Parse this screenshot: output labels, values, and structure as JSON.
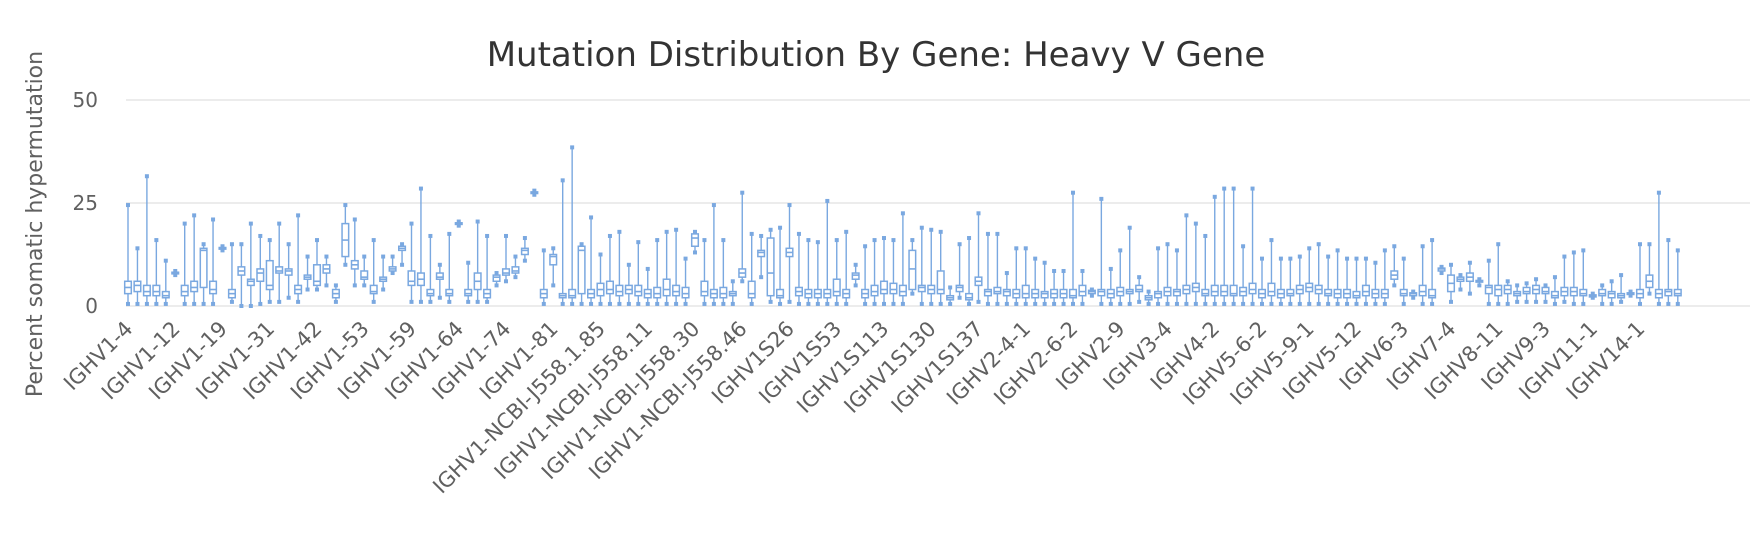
{
  "chart_data": {
    "type": "boxplot",
    "title": "Mutation Distribution By Gene: Heavy V Gene",
    "xlabel": "",
    "ylabel": "Percent somatic hypermutation",
    "ylim": [
      0,
      50
    ],
    "yticks": [
      0,
      25,
      50
    ],
    "grid": true,
    "legend": "none",
    "color": "#7aa8e0",
    "tick_labels": [
      "IGHV1-4",
      "IGHV1-12",
      "IGHV1-19",
      "IGHV1-31",
      "IGHV1-42",
      "IGHV1-53",
      "IGHV1-59",
      "IGHV1-64",
      "IGHV1-74",
      "IGHV1-81",
      "IGHV1-NCBI-J558.1.85",
      "IGHV1-NCBI-J558.11",
      "IGHV1-NCBI-J558.30",
      "IGHV1-NCBI-J558.46",
      "IGHV1S26",
      "IGHV1S53",
      "IGHV1S113",
      "IGHV1S130",
      "IGHV1S137",
      "IGHV2-4-1",
      "IGHV2-6-2",
      "IGHV2-9",
      "IGHV3-4",
      "IGHV4-2",
      "IGHV5-6-2",
      "IGHV5-9-1",
      "IGHV5-12",
      "IGHV6-3",
      "IGHV7-4",
      "IGHV8-11",
      "IGHV9-3",
      "IGHV11-1",
      "IGHV14-1"
    ],
    "tick_every": 5,
    "boxes": [
      [
        0.5,
        3,
        4.5,
        6,
        24.5
      ],
      [
        0.5,
        3.5,
        5,
        6,
        14
      ],
      [
        0.5,
        2.5,
        3.5,
        5,
        31.5
      ],
      [
        0.5,
        2.5,
        3.5,
        5,
        16
      ],
      [
        0.5,
        2,
        2.5,
        3.5,
        11
      ],
      [
        7.5,
        7.8,
        8,
        8.2,
        8.5
      ],
      [
        0.5,
        2.5,
        3.5,
        5,
        20
      ],
      [
        0.5,
        3.5,
        4.5,
        6,
        22
      ],
      [
        0.5,
        4.5,
        13.5,
        14,
        15
      ],
      [
        0.5,
        3,
        4,
        6,
        21
      ],
      [
        13.5,
        13.8,
        14,
        14.2,
        14.5
      ],
      [
        1,
        2,
        3,
        4,
        15
      ],
      [
        0,
        7.5,
        8.5,
        9.5,
        15
      ],
      [
        0,
        5,
        6,
        6.5,
        20
      ],
      [
        0.5,
        6,
        8,
        9,
        17
      ],
      [
        1,
        4,
        5,
        11,
        16
      ],
      [
        1,
        8,
        8.5,
        9.5,
        20
      ],
      [
        2,
        7.5,
        8.5,
        9,
        15
      ],
      [
        1,
        3,
        4,
        5,
        22
      ],
      [
        4,
        6.5,
        7,
        7.5,
        12
      ],
      [
        4,
        5,
        6,
        10,
        16
      ],
      [
        5,
        8,
        9,
        10,
        12
      ],
      [
        1,
        2,
        3,
        4,
        5
      ],
      [
        10,
        12,
        16,
        20,
        24.5
      ],
      [
        5,
        9,
        10,
        11,
        21
      ],
      [
        5,
        6.5,
        7,
        8.5,
        12
      ],
      [
        1,
        3,
        3.5,
        5,
        16
      ],
      [
        4,
        6,
        6.5,
        7,
        12
      ],
      [
        8,
        8.5,
        9,
        9.5,
        12
      ],
      [
        10,
        13.5,
        14,
        14.5,
        15
      ],
      [
        1,
        5,
        6,
        8.5,
        20
      ],
      [
        1,
        5,
        6.5,
        8,
        28.5
      ],
      [
        1,
        2.5,
        3,
        4,
        17
      ],
      [
        2,
        6.5,
        7,
        8,
        10
      ],
      [
        1,
        2.5,
        3,
        4,
        17.5
      ],
      [
        19.5,
        19.8,
        20,
        20.2,
        20.5
      ],
      [
        1,
        2.5,
        3,
        4,
        10.5
      ],
      [
        1,
        4,
        6,
        8,
        20.5
      ],
      [
        1,
        2,
        3,
        4,
        17
      ],
      [
        5,
        6,
        7,
        7.5,
        8
      ],
      [
        6,
        7.5,
        8,
        9,
        17
      ],
      [
        7,
        8,
        8.5,
        9.5,
        12
      ],
      [
        11,
        12.5,
        13.5,
        14,
        16.5
      ],
      [
        27,
        27.3,
        27.5,
        27.7,
        28
      ],
      [
        0.5,
        2,
        3,
        4,
        13.5
      ],
      [
        5,
        10,
        12,
        12.5,
        14
      ],
      [
        0.5,
        2,
        2.5,
        3,
        30.5
      ],
      [
        0.5,
        2,
        2.5,
        4,
        38.5
      ],
      [
        0.5,
        3,
        13.5,
        14.5,
        15
      ],
      [
        0.5,
        2,
        3,
        4,
        21.5
      ],
      [
        0.5,
        2.5,
        4,
        5.5,
        12.5
      ],
      [
        0.5,
        3,
        4,
        6,
        17
      ],
      [
        0.5,
        2.5,
        3.5,
        5,
        18
      ],
      [
        0.5,
        3,
        4,
        5,
        10
      ],
      [
        0.5,
        2.5,
        3.5,
        5,
        15.5
      ],
      [
        0.5,
        2,
        3,
        4,
        9
      ],
      [
        0.5,
        2,
        3,
        4.5,
        16
      ],
      [
        0.5,
        2.5,
        4,
        6.5,
        18
      ],
      [
        0.5,
        2.5,
        3.5,
        5,
        18.5
      ],
      [
        0.5,
        2,
        3,
        4.5,
        11.5
      ],
      [
        13,
        14.5,
        16.5,
        17.5,
        18
      ],
      [
        0.5,
        2.5,
        3.5,
        6,
        16
      ],
      [
        0.5,
        2,
        3,
        4,
        24.5
      ],
      [
        0.5,
        2,
        3,
        4.5,
        16
      ],
      [
        0.5,
        2.5,
        3,
        3.5,
        6
      ],
      [
        6,
        7,
        8,
        9,
        27.5
      ],
      [
        0.5,
        2,
        3,
        6,
        17.5
      ],
      [
        7,
        12,
        13,
        13.5,
        17
      ],
      [
        1,
        2.5,
        8,
        16.5,
        18.5
      ],
      [
        0.5,
        2,
        2.5,
        4,
        19
      ],
      [
        1,
        12,
        13,
        14,
        24.5
      ],
      [
        0.5,
        2.5,
        3.5,
        4.5,
        17.5
      ],
      [
        0.5,
        2,
        3,
        4,
        16
      ],
      [
        0.5,
        2,
        3,
        4,
        15.5
      ],
      [
        0.5,
        2,
        3,
        4,
        25.5
      ],
      [
        0.5,
        2.5,
        3.5,
        6.5,
        16
      ],
      [
        0.5,
        2,
        3,
        4,
        18
      ],
      [
        5,
        6.5,
        7.5,
        8,
        10
      ],
      [
        0.5,
        2,
        3,
        4,
        14.5
      ],
      [
        0.5,
        2.5,
        3.5,
        5,
        16
      ],
      [
        0.5,
        3,
        4,
        6,
        16.5
      ],
      [
        0.5,
        3,
        4,
        5.5,
        16
      ],
      [
        0.5,
        2.5,
        3.5,
        5,
        22.5
      ],
      [
        3,
        4,
        9,
        13.5,
        16
      ],
      [
        0.5,
        3.5,
        4.5,
        5,
        19
      ],
      [
        0.5,
        3,
        4,
        5,
        18.5
      ],
      [
        0.5,
        3,
        4,
        8.5,
        18
      ],
      [
        0.5,
        1.5,
        2,
        2.5,
        4.5
      ],
      [
        2,
        3.5,
        4.5,
        5,
        15
      ],
      [
        0.5,
        1.5,
        2,
        3,
        16.5
      ],
      [
        1,
        5,
        6,
        7,
        22.5
      ],
      [
        0.5,
        2.5,
        3.5,
        4,
        17.5
      ],
      [
        0.5,
        3,
        3.5,
        4.5,
        17.5
      ],
      [
        0.5,
        2.5,
        3.5,
        4,
        8
      ],
      [
        0.5,
        2,
        3,
        4,
        14
      ],
      [
        0.5,
        2,
        3,
        5,
        14
      ],
      [
        0.5,
        2,
        3,
        4,
        11.5
      ],
      [
        0.5,
        2,
        3,
        3.5,
        10.5
      ],
      [
        0.5,
        2,
        3,
        4,
        8.5
      ],
      [
        0.5,
        2,
        3,
        4,
        8.5
      ],
      [
        0.5,
        2,
        2.5,
        4,
        27.5
      ],
      [
        0.5,
        2.5,
        3.5,
        5,
        8.5
      ],
      [
        2.5,
        3,
        3.5,
        3.8,
        4
      ],
      [
        0.5,
        2.5,
        3.5,
        4,
        26
      ],
      [
        0.5,
        2,
        3,
        4,
        9
      ],
      [
        0.5,
        2.5,
        3.5,
        4.5,
        13.5
      ],
      [
        0.5,
        3,
        3.5,
        4,
        19
      ],
      [
        1,
        3.5,
        4,
        5,
        7
      ],
      [
        0.5,
        1.5,
        2,
        2.5,
        3.5
      ],
      [
        0.5,
        2,
        3,
        3.5,
        14
      ],
      [
        0.5,
        2.5,
        3.5,
        4.5,
        15
      ],
      [
        0.5,
        2.5,
        3.5,
        4,
        13.5
      ],
      [
        0.5,
        3,
        4,
        5,
        22
      ],
      [
        0.5,
        3.5,
        4.5,
        5.5,
        20
      ],
      [
        0.5,
        2.5,
        3,
        4,
        17
      ],
      [
        0.5,
        2.5,
        3.5,
        5,
        26.5
      ],
      [
        0.5,
        2.5,
        3.5,
        5,
        28.5
      ],
      [
        0.5,
        2.5,
        3,
        5,
        28.5
      ],
      [
        0.5,
        2.5,
        3.5,
        4.5,
        14.5
      ],
      [
        0.5,
        3,
        4,
        5.5,
        28.5
      ],
      [
        0.5,
        2,
        3,
        4,
        11.5
      ],
      [
        0.5,
        2.5,
        3.5,
        5.5,
        16
      ],
      [
        0.5,
        2,
        3,
        4,
        11.5
      ],
      [
        0.5,
        2.5,
        3,
        4,
        11.5
      ],
      [
        0.5,
        3,
        4,
        5,
        12
      ],
      [
        0.5,
        3.5,
        4.5,
        5.5,
        14
      ],
      [
        0.5,
        3,
        4,
        5,
        15
      ],
      [
        0.5,
        2.5,
        3,
        4,
        12
      ],
      [
        0.5,
        2,
        3,
        4,
        13.5
      ],
      [
        0.5,
        2,
        3,
        4,
        11.5
      ],
      [
        0.5,
        2,
        2.5,
        3.5,
        11.5
      ],
      [
        0.5,
        2.5,
        3.5,
        5,
        11.5
      ],
      [
        0.5,
        2,
        3,
        4,
        10.5
      ],
      [
        0.5,
        2,
        3,
        4,
        13.5
      ],
      [
        5,
        6.5,
        7.5,
        8.5,
        14.5
      ],
      [
        0.5,
        2.5,
        3,
        4,
        11.5
      ],
      [
        2,
        2.5,
        3,
        3.2,
        3.5
      ],
      [
        0.5,
        2.5,
        3.5,
        5,
        14.5
      ],
      [
        0.5,
        2,
        2.5,
        4,
        16
      ],
      [
        8,
        8.5,
        9,
        9.2,
        9.5
      ],
      [
        1,
        3.5,
        5.5,
        7.5,
        10
      ],
      [
        4,
        6,
        6.5,
        7,
        7.5
      ],
      [
        3,
        6,
        7,
        8,
        10.5
      ],
      [
        5,
        5.8,
        6,
        6.2,
        6.5
      ],
      [
        0.5,
        3,
        4.5,
        5,
        11
      ],
      [
        0.5,
        2.5,
        4,
        5,
        15
      ],
      [
        0.5,
        3,
        4,
        5,
        6
      ],
      [
        1,
        2.5,
        3,
        3.5,
        5
      ],
      [
        1,
        3,
        3.5,
        4.5,
        5.5
      ],
      [
        1,
        3,
        4,
        5,
        6.5
      ],
      [
        1,
        3,
        3.5,
        4.5,
        5
      ],
      [
        0.5,
        2,
        2.5,
        3.5,
        7
      ],
      [
        1,
        2.5,
        3.5,
        4.5,
        12
      ],
      [
        0.5,
        2.5,
        3.5,
        4.5,
        13
      ],
      [
        0.5,
        2.5,
        3,
        4,
        13.5
      ],
      [
        2,
        2.2,
        2.5,
        2.7,
        3
      ],
      [
        0.5,
        2.5,
        3,
        4,
        5
      ],
      [
        0.5,
        2,
        3,
        3.5,
        6
      ],
      [
        1,
        2,
        2.5,
        3,
        7.5
      ],
      [
        2.5,
        2.8,
        3,
        3.2,
        3.5
      ],
      [
        0.5,
        2,
        3,
        4,
        15
      ],
      [
        3,
        4.5,
        6,
        7.5,
        15
      ],
      [
        0.5,
        2,
        3,
        4,
        27.5
      ],
      [
        0.5,
        2.5,
        3.5,
        4,
        16
      ],
      [
        0.5,
        2.5,
        3,
        4,
        13.5
      ]
    ]
  }
}
